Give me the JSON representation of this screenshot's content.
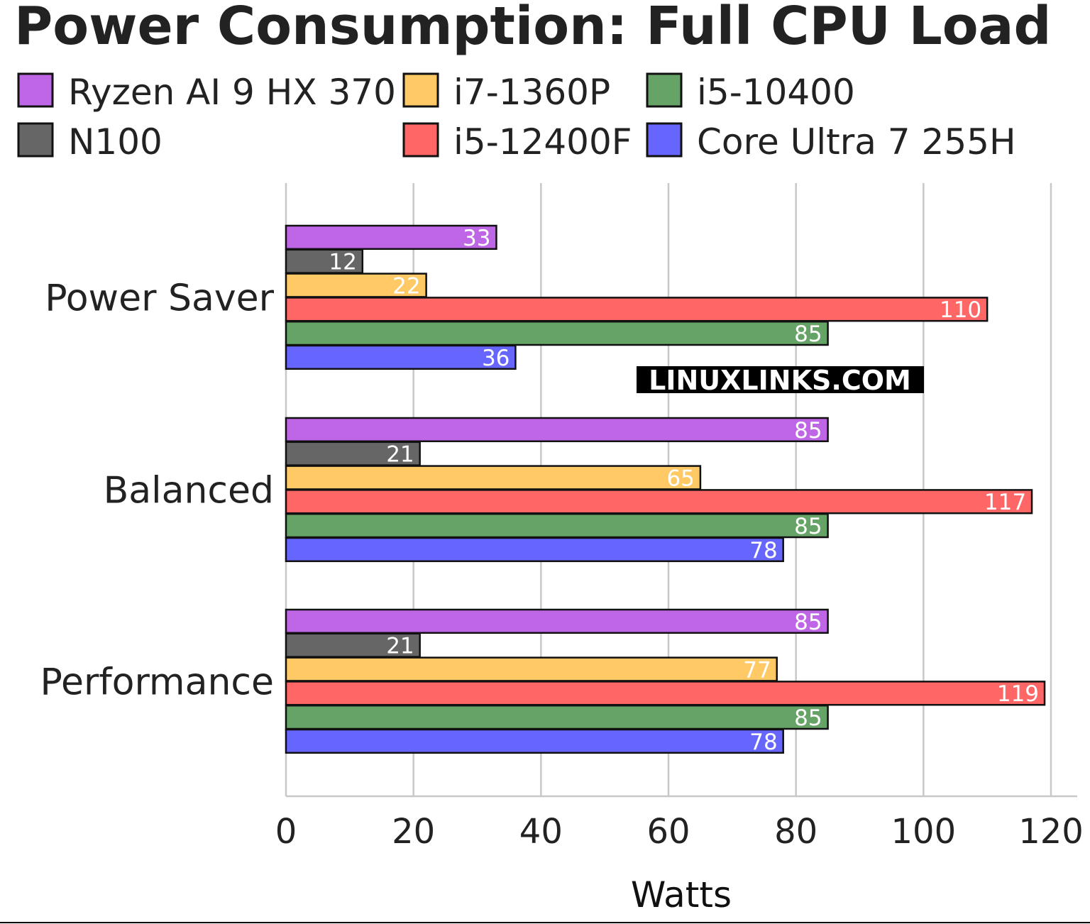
{
  "chart_data": {
    "type": "bar",
    "orientation": "horizontal",
    "title": "Power Consumption: Full CPU Load",
    "xlabel": "Watts",
    "ylabel": "",
    "xlim": [
      0,
      120
    ],
    "xticks": [
      0,
      20,
      40,
      60,
      80,
      100,
      120
    ],
    "grid": true,
    "legend_placement": "top",
    "watermark": "LINUXLINKS.COM",
    "categories": [
      "Power Saver",
      "Balanced",
      "Performance"
    ],
    "series": [
      {
        "name": "Ryzen AI 9 HX 370",
        "color": "#bf66e6",
        "values": [
          33,
          85,
          85
        ]
      },
      {
        "name": "N100",
        "color": "#666666",
        "values": [
          12,
          21,
          21
        ]
      },
      {
        "name": "i7-1360P",
        "color": "#ffc966",
        "values": [
          22,
          65,
          77
        ]
      },
      {
        "name": "i5-12400F",
        "color": "#ff6666",
        "values": [
          110,
          117,
          119
        ]
      },
      {
        "name": "i5-10400",
        "color": "#66a366",
        "values": [
          85,
          85,
          85
        ]
      },
      {
        "name": "Core Ultra 7 255H",
        "color": "#6666ff",
        "values": [
          36,
          78,
          78
        ]
      }
    ],
    "legend_order": [
      "Ryzen AI 9 HX 370",
      "i7-1360P",
      "i5-10400",
      "N100",
      "i5-12400F",
      "Core Ultra 7 255H"
    ]
  }
}
